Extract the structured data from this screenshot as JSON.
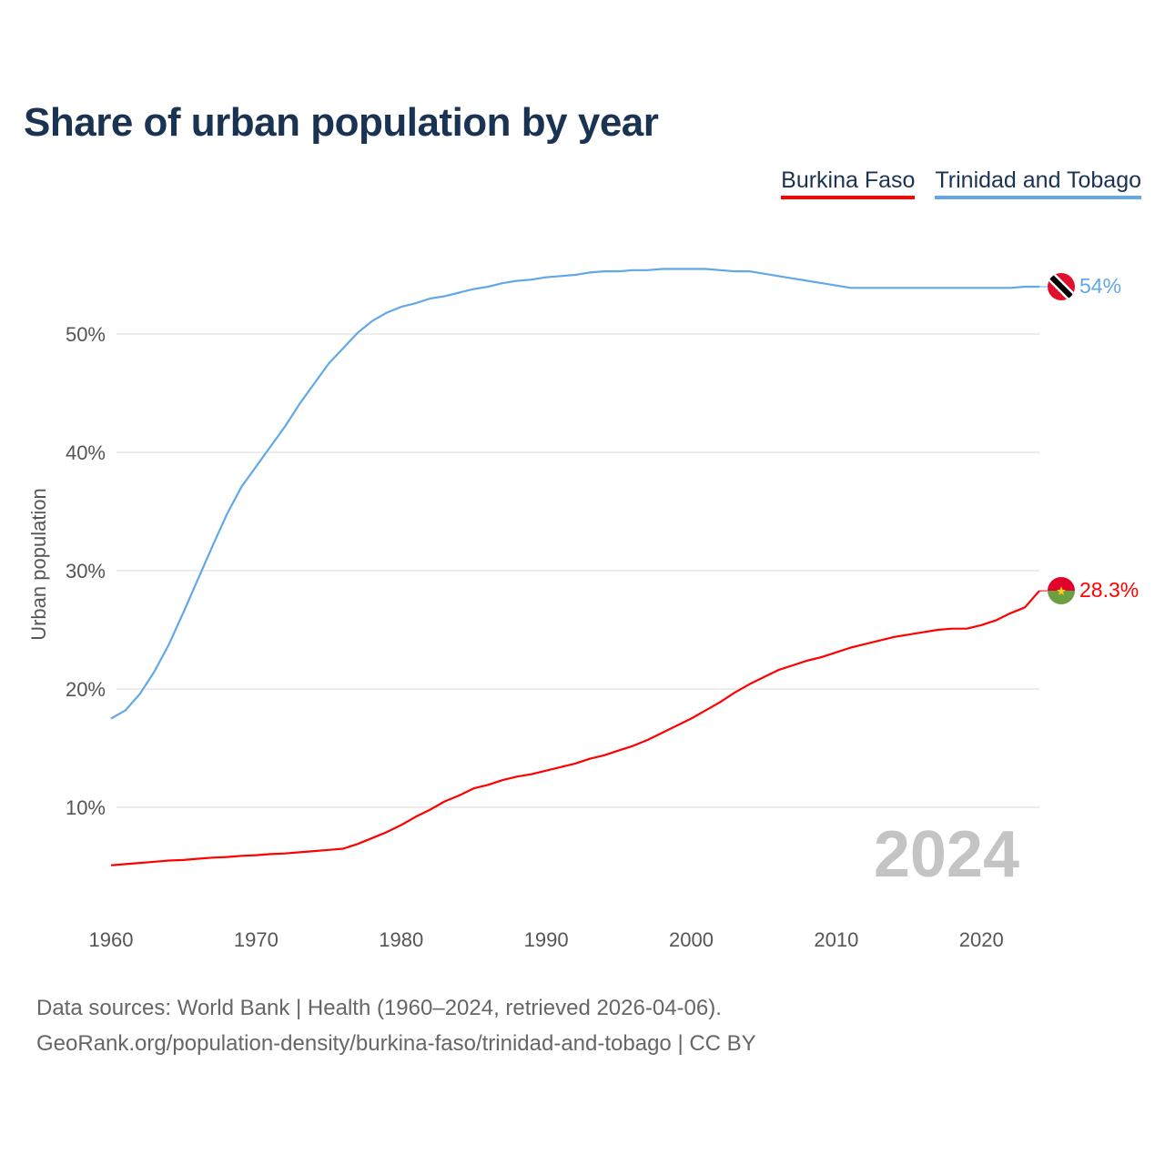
{
  "title": "Share of urban population by year",
  "legend": [
    {
      "name": "Burkina Faso",
      "color": "#ff0000"
    },
    {
      "name": "Trinidad and Tobago",
      "color": "#62a8e8"
    }
  ],
  "chart_data": {
    "type": "line",
    "title": "Share of urban population by year",
    "xlabel": "",
    "ylabel": "Urban population",
    "xlim": [
      1960,
      2024
    ],
    "ylim": [
      0,
      56
    ],
    "x_ticks": [
      "1960",
      "1970",
      "1980",
      "1990",
      "2000",
      "2010",
      "2020"
    ],
    "y_ticks": [
      "10%",
      "20%",
      "30%",
      "40%",
      "50%"
    ],
    "y_tick_values": [
      10,
      20,
      30,
      40,
      50
    ],
    "x_tick_values": [
      1960,
      1970,
      1980,
      1990,
      2000,
      2010,
      2020
    ],
    "grid": true,
    "legend_position": "top-right",
    "year_label": "2024",
    "x": [
      1960,
      1961,
      1962,
      1963,
      1964,
      1965,
      1966,
      1967,
      1968,
      1969,
      1970,
      1971,
      1972,
      1973,
      1974,
      1975,
      1976,
      1977,
      1978,
      1979,
      1980,
      1981,
      1982,
      1983,
      1984,
      1985,
      1986,
      1987,
      1988,
      1989,
      1990,
      1991,
      1992,
      1993,
      1994,
      1995,
      1996,
      1997,
      1998,
      1999,
      2000,
      2001,
      2002,
      2003,
      2004,
      2005,
      2006,
      2007,
      2008,
      2009,
      2010,
      2011,
      2012,
      2013,
      2014,
      2015,
      2016,
      2017,
      2018,
      2019,
      2020,
      2021,
      2022,
      2023,
      2024
    ],
    "series": [
      {
        "name": "Trinidad and Tobago",
        "color": "#62a8e8",
        "end_label": "54%",
        "values": [
          17.5,
          18.2,
          19.6,
          21.5,
          23.8,
          26.5,
          29.3,
          32.1,
          34.8,
          37.1,
          38.8,
          40.5,
          42.2,
          44.1,
          45.8,
          47.5,
          48.8,
          50.1,
          51.1,
          51.8,
          52.3,
          52.6,
          53.0,
          53.2,
          53.5,
          53.8,
          54.0,
          54.3,
          54.5,
          54.6,
          54.8,
          54.9,
          55.0,
          55.2,
          55.3,
          55.3,
          55.4,
          55.4,
          55.5,
          55.5,
          55.5,
          55.5,
          55.4,
          55.3,
          55.3,
          55.1,
          54.9,
          54.7,
          54.5,
          54.3,
          54.1,
          53.9,
          53.9,
          53.9,
          53.9,
          53.9,
          53.9,
          53.9,
          53.9,
          53.9,
          53.9,
          53.9,
          53.9,
          54.0,
          54.0
        ]
      },
      {
        "name": "Burkina Faso",
        "color": "#ff0000",
        "end_label": "28.3%",
        "values": [
          5.1,
          5.2,
          5.3,
          5.4,
          5.5,
          5.55,
          5.65,
          5.75,
          5.8,
          5.9,
          5.95,
          6.05,
          6.1,
          6.2,
          6.3,
          6.4,
          6.5,
          6.9,
          7.4,
          7.9,
          8.5,
          9.2,
          9.8,
          10.5,
          11.0,
          11.6,
          11.9,
          12.3,
          12.6,
          12.8,
          13.1,
          13.4,
          13.7,
          14.1,
          14.4,
          14.8,
          15.2,
          15.7,
          16.3,
          16.9,
          17.5,
          18.2,
          18.9,
          19.7,
          20.4,
          21.0,
          21.6,
          22.0,
          22.4,
          22.7,
          23.1,
          23.5,
          23.8,
          24.1,
          24.4,
          24.6,
          24.8,
          25.0,
          25.1,
          25.1,
          25.4,
          25.8,
          26.4,
          26.9,
          28.3
        ]
      }
    ]
  },
  "footer": {
    "line1": "Data sources: World Bank | Health (1960–2024, retrieved 2026-04-06).",
    "line2": "GeoRank.org/population-density/burkina-faso/trinidad-and-tobago | CC BY"
  }
}
